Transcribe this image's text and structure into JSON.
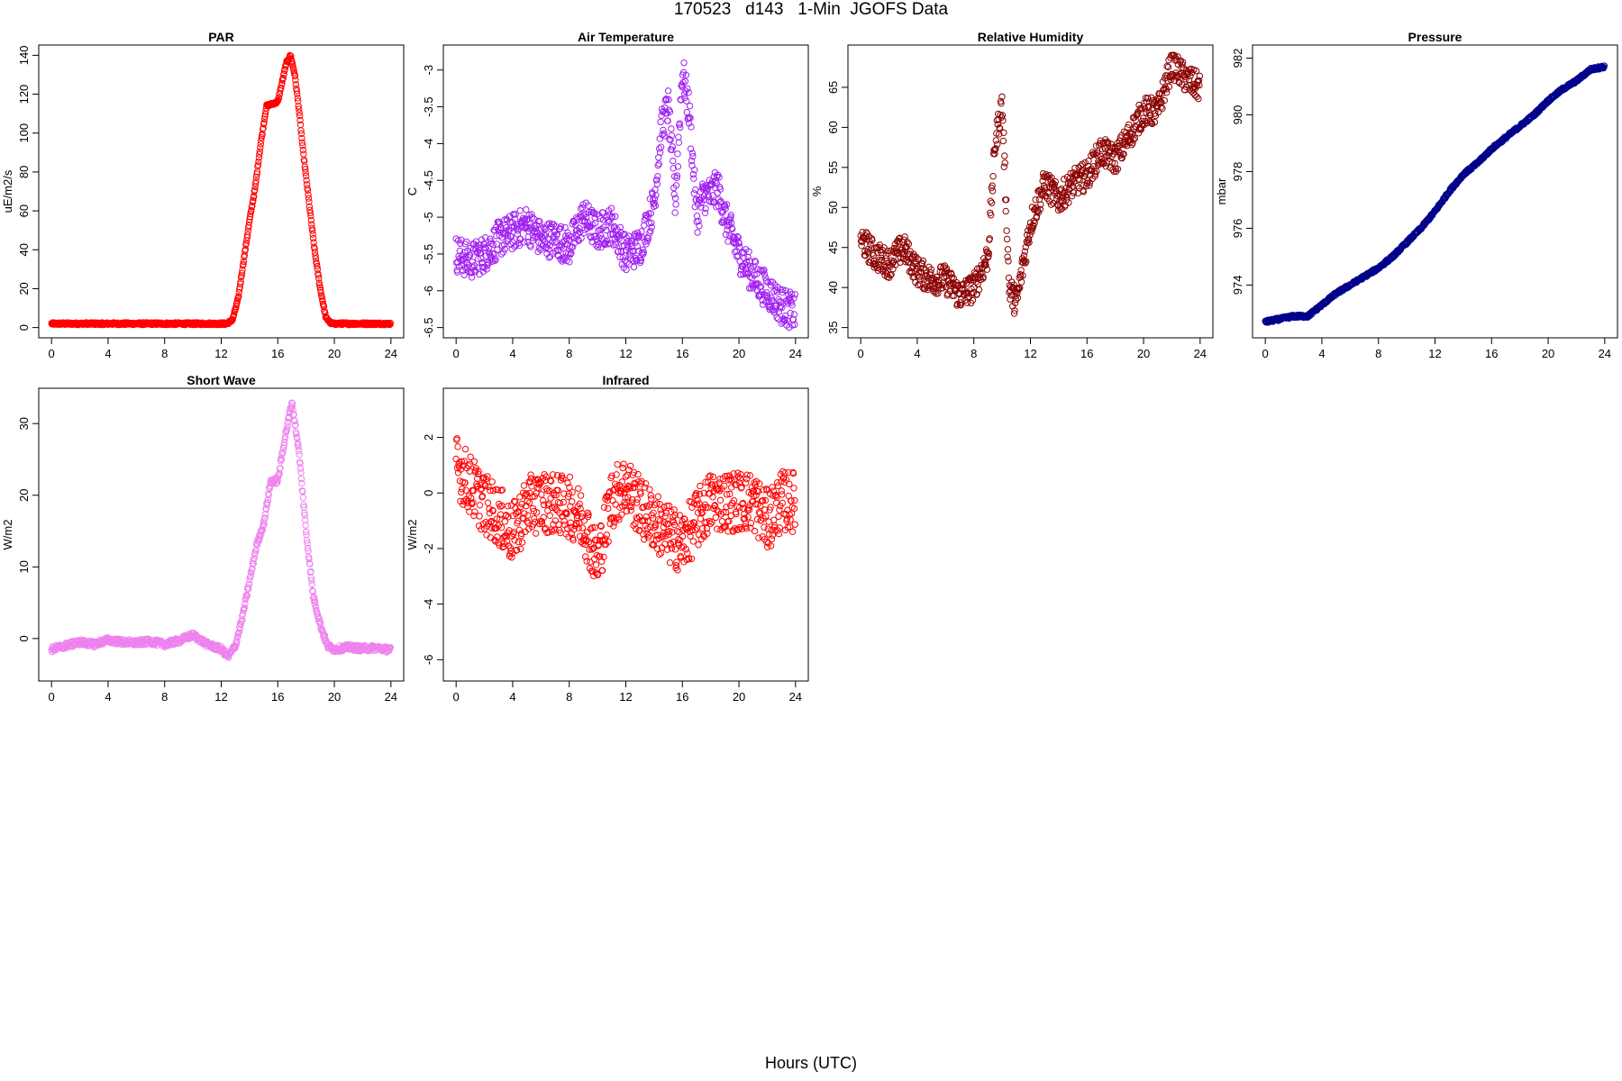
{
  "figure": {
    "title": "170523   d143   1-Min  JGOFS Data",
    "xlabel": "Hours (UTC)"
  },
  "chart_data": [
    {
      "type": "scatter",
      "title": "PAR",
      "ylabel": "uE/m2/s",
      "color": "#ff0000",
      "xlim": [
        0,
        24
      ],
      "ylim": [
        0,
        140
      ],
      "xticks": [
        0,
        4,
        8,
        12,
        16,
        20,
        24
      ],
      "yticks": [
        0,
        20,
        40,
        60,
        80,
        100,
        120,
        140
      ],
      "series": [
        {
          "x": [
            0,
            12.4,
            12.8,
            13.2,
            13.6,
            14.0,
            14.4,
            14.8,
            15.2,
            15.6,
            16.0,
            16.3,
            16.6,
            16.9,
            17.2,
            17.5,
            17.8,
            18.2,
            18.6,
            19.0,
            19.4,
            19.8,
            24
          ],
          "y": [
            2,
            2,
            4,
            15,
            35,
            55,
            72,
            95,
            114,
            115,
            116,
            126,
            136,
            140,
            130,
            112,
            90,
            65,
            40,
            20,
            5,
            2,
            2
          ]
        }
      ]
    },
    {
      "type": "scatter",
      "title": "Air Temperature",
      "ylabel": "C",
      "color": "#a020f0",
      "xlim": [
        0,
        24
      ],
      "ylim": [
        -6.5,
        -2.8
      ],
      "xticks": [
        0,
        4,
        8,
        12,
        16,
        20,
        24
      ],
      "yticks": [
        -6.5,
        -6.0,
        -5.5,
        -5.0,
        -4.5,
        -4.0,
        -3.5,
        -3.0
      ],
      "series": [
        {
          "x": [
            0,
            1,
            2,
            3,
            4,
            5,
            6,
            7,
            8,
            9,
            10,
            11,
            12,
            13,
            14,
            14.5,
            15,
            15.5,
            16,
            16.5,
            17,
            17.5,
            18,
            18.5,
            19,
            20,
            21,
            22,
            23,
            24
          ],
          "y": [
            -5.5,
            -5.6,
            -5.5,
            -5.3,
            -5.2,
            -5.1,
            -5.3,
            -5.3,
            -5.4,
            -5.0,
            -5.2,
            -5.1,
            -5.5,
            -5.4,
            -4.8,
            -3.8,
            -3.5,
            -4.8,
            -3.0,
            -3.6,
            -5.0,
            -4.7,
            -4.7,
            -4.6,
            -5.0,
            -5.5,
            -5.8,
            -6.0,
            -6.2,
            -6.3
          ]
        }
      ]
    },
    {
      "type": "scatter",
      "title": "Relative Humidity",
      "ylabel": "%",
      "color": "#8b0000",
      "xlim": [
        0,
        24
      ],
      "ylim": [
        35,
        69
      ],
      "xticks": [
        0,
        4,
        8,
        12,
        16,
        20,
        24
      ],
      "yticks": [
        35,
        40,
        45,
        50,
        55,
        60,
        65
      ],
      "series": [
        {
          "x": [
            0,
            1,
            2,
            3,
            4,
            5,
            6,
            7,
            8,
            9,
            9.5,
            10,
            10.5,
            11,
            12,
            13,
            14,
            15,
            16,
            17,
            18,
            19,
            20,
            21,
            22,
            23,
            24
          ],
          "y": [
            46,
            44,
            43,
            45,
            42,
            41,
            41,
            39,
            40,
            44,
            58,
            63,
            40,
            38,
            48,
            53,
            51,
            53,
            54,
            57,
            56,
            59,
            62,
            62,
            68,
            66,
            65
          ]
        }
      ]
    },
    {
      "type": "scatter",
      "title": "Pressure",
      "ylabel": "mbar",
      "color": "#00008b",
      "xlim": [
        0,
        24
      ],
      "ylim": [
        972.5,
        982.1
      ],
      "xticks": [
        0,
        4,
        8,
        12,
        16,
        20,
        24
      ],
      "yticks": [
        974,
        976,
        978,
        980,
        982
      ],
      "series": [
        {
          "x": [
            0,
            1,
            2,
            3,
            4,
            5,
            6,
            7,
            8,
            9,
            10,
            11,
            12,
            13,
            14,
            15,
            16,
            17,
            18,
            19,
            20,
            21,
            22,
            23,
            24
          ],
          "y": [
            972.7,
            972.8,
            972.9,
            972.9,
            973.3,
            973.7,
            974.0,
            974.3,
            974.6,
            975.0,
            975.5,
            976.0,
            976.6,
            977.3,
            977.9,
            978.3,
            978.8,
            979.2,
            979.6,
            980.0,
            980.5,
            980.9,
            981.2,
            981.6,
            981.7
          ]
        }
      ]
    },
    {
      "type": "scatter",
      "title": "Short Wave",
      "ylabel": "W/m2",
      "color": "#ee82ee",
      "xlim": [
        0,
        24
      ],
      "ylim": [
        -4.5,
        33.5
      ],
      "xticks": [
        0,
        4,
        8,
        12,
        16,
        20,
        24
      ],
      "yticks": [
        0,
        10,
        20,
        30
      ],
      "series": [
        {
          "x": [
            0,
            1,
            2,
            3,
            4,
            5,
            6,
            7,
            8,
            9,
            10,
            11,
            12,
            12.5,
            13,
            13.5,
            14,
            14.5,
            15,
            15.5,
            16,
            16.5,
            17,
            17.5,
            18,
            18.5,
            19,
            19.5,
            20,
            21,
            22,
            23,
            24
          ],
          "y": [
            -1.5,
            -1,
            -0.5,
            -0.8,
            -0.2,
            -0.5,
            -0.6,
            -0.4,
            -0.8,
            -0.3,
            0.5,
            -0.8,
            -1.5,
            -2.5,
            -1,
            3,
            8,
            13,
            16,
            22,
            22,
            28,
            33,
            26,
            15,
            6,
            2,
            -1,
            -1.5,
            -1.2,
            -1.4,
            -1.3,
            -1.6
          ]
        }
      ]
    },
    {
      "type": "scatter",
      "title": "Infrared",
      "ylabel": "W/m2",
      "color": "#ff0000",
      "xlim": [
        0,
        24
      ],
      "ylim": [
        -6.4,
        3.4
      ],
      "xticks": [
        0,
        4,
        8,
        12,
        16,
        20,
        24
      ],
      "yticks": [
        -6,
        -4,
        -2,
        0,
        2
      ],
      "series": [
        {
          "x": [
            0,
            1,
            2,
            3,
            4,
            5,
            6,
            7,
            8,
            9,
            10,
            11,
            12,
            13,
            14,
            15,
            16,
            17,
            18,
            19,
            20,
            21,
            22,
            23,
            24
          ],
          "y": [
            1.0,
            0.3,
            -0.4,
            -0.8,
            -1.5,
            -0.5,
            -0.3,
            -0.4,
            -0.5,
            -1.0,
            -2.5,
            -0.2,
            0.3,
            -0.5,
            -1.0,
            -1.5,
            -1.8,
            -1.0,
            -0.3,
            -0.3,
            -0.3,
            -0.3,
            -1.0,
            -0.3,
            -0.3
          ]
        }
      ]
    }
  ]
}
